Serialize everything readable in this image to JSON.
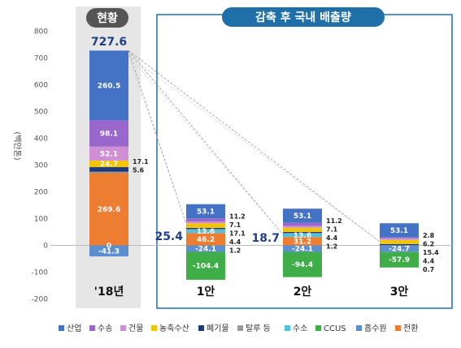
{
  "panels": {
    "current_title": "현황",
    "target_title": "감축 후 국내 배출량"
  },
  "chart_data": {
    "type": "bar",
    "stacked": true,
    "ylabel": "(백만톤)",
    "ylim": [
      -200,
      800
    ],
    "yticks": [
      -200,
      -100,
      0,
      100,
      200,
      300,
      400,
      500,
      600,
      700,
      800
    ],
    "legend_position": "bottom",
    "categories": [
      "'18년",
      "1안",
      "2안",
      "3안"
    ],
    "totals": [
      "727.6",
      "25.4",
      "18.7",
      "0"
    ],
    "series": [
      {
        "name": "산업",
        "color": "#4472c4",
        "values": [
          260.5,
          53.1,
          53.1,
          53.1
        ]
      },
      {
        "name": "수송",
        "color": "#9966cc",
        "values": [
          98.1,
          11.2,
          11.2,
          2.8
        ]
      },
      {
        "name": "건물",
        "color": "#d08fd4",
        "values": [
          52.1,
          7.1,
          7.1,
          6.2
        ]
      },
      {
        "name": "농축수산",
        "color": "#f2c500",
        "values": [
          24.7,
          17.1,
          15.4,
          15.4
        ]
      },
      {
        "name": "폐기물",
        "color": "#1f3a78",
        "values": [
          17.1,
          4.4,
          4.4,
          4.4
        ]
      },
      {
        "name": "탈루 등",
        "color": "#999999",
        "values": [
          5.6,
          1.2,
          1.2,
          0.7
        ]
      },
      {
        "name": "수소",
        "color": "#4fc3dd",
        "values": [
          0,
          13.6,
          13.6,
          0
        ]
      },
      {
        "name": "CCUS",
        "color": "#3fae49",
        "values": [
          0,
          -104.4,
          -94.4,
          -57.9
        ]
      },
      {
        "name": "흡수원",
        "color": "#5b8fd0",
        "values": [
          -41.3,
          -24.1,
          -24.1,
          -24.7
        ]
      },
      {
        "name": "전환",
        "color": "#ed7d31",
        "values": [
          269.6,
          46.2,
          31.2,
          0
        ]
      }
    ],
    "bar_labels": [
      {
        "inside": [
          {
            "s": 0,
            "t": "260.5"
          },
          {
            "s": 1,
            "t": "98.1"
          },
          {
            "s": 2,
            "t": "52.1"
          },
          {
            "s": 3,
            "t": "24.7"
          },
          {
            "s": 6,
            "t": "0"
          },
          {
            "s": 9,
            "t": "269.6"
          },
          {
            "s": 8,
            "t": "-41.3"
          }
        ],
        "side": [
          "17.1",
          "5.6"
        ]
      },
      {
        "inside": [
          {
            "s": 0,
            "t": "53.1"
          },
          {
            "s": 6,
            "t": "13.6"
          },
          {
            "s": 9,
            "t": "46.2"
          },
          {
            "s": 8,
            "t": "-24.1"
          },
          {
            "s": 7,
            "t": "-104.4"
          }
        ],
        "side": [
          "11.2",
          "7.1",
          "17.1",
          "4.4",
          "1.2"
        ]
      },
      {
        "inside": [
          {
            "s": 0,
            "t": "53.1"
          },
          {
            "s": 6,
            "t": "13.6"
          },
          {
            "s": 9,
            "t": "31.2"
          },
          {
            "s": 8,
            "t": "-24.1"
          },
          {
            "s": 7,
            "t": "-94.4"
          }
        ],
        "side": [
          "11.2",
          "7.1",
          "4.4",
          "1.2"
        ]
      },
      {
        "inside": [
          {
            "s": 0,
            "t": "53.1"
          },
          {
            "s": 8,
            "t": "-24.7"
          },
          {
            "s": 7,
            "t": "-57.9"
          }
        ],
        "side": [
          "2.8",
          "6.2",
          "15.4",
          "4.4",
          "0.7"
        ]
      }
    ]
  }
}
